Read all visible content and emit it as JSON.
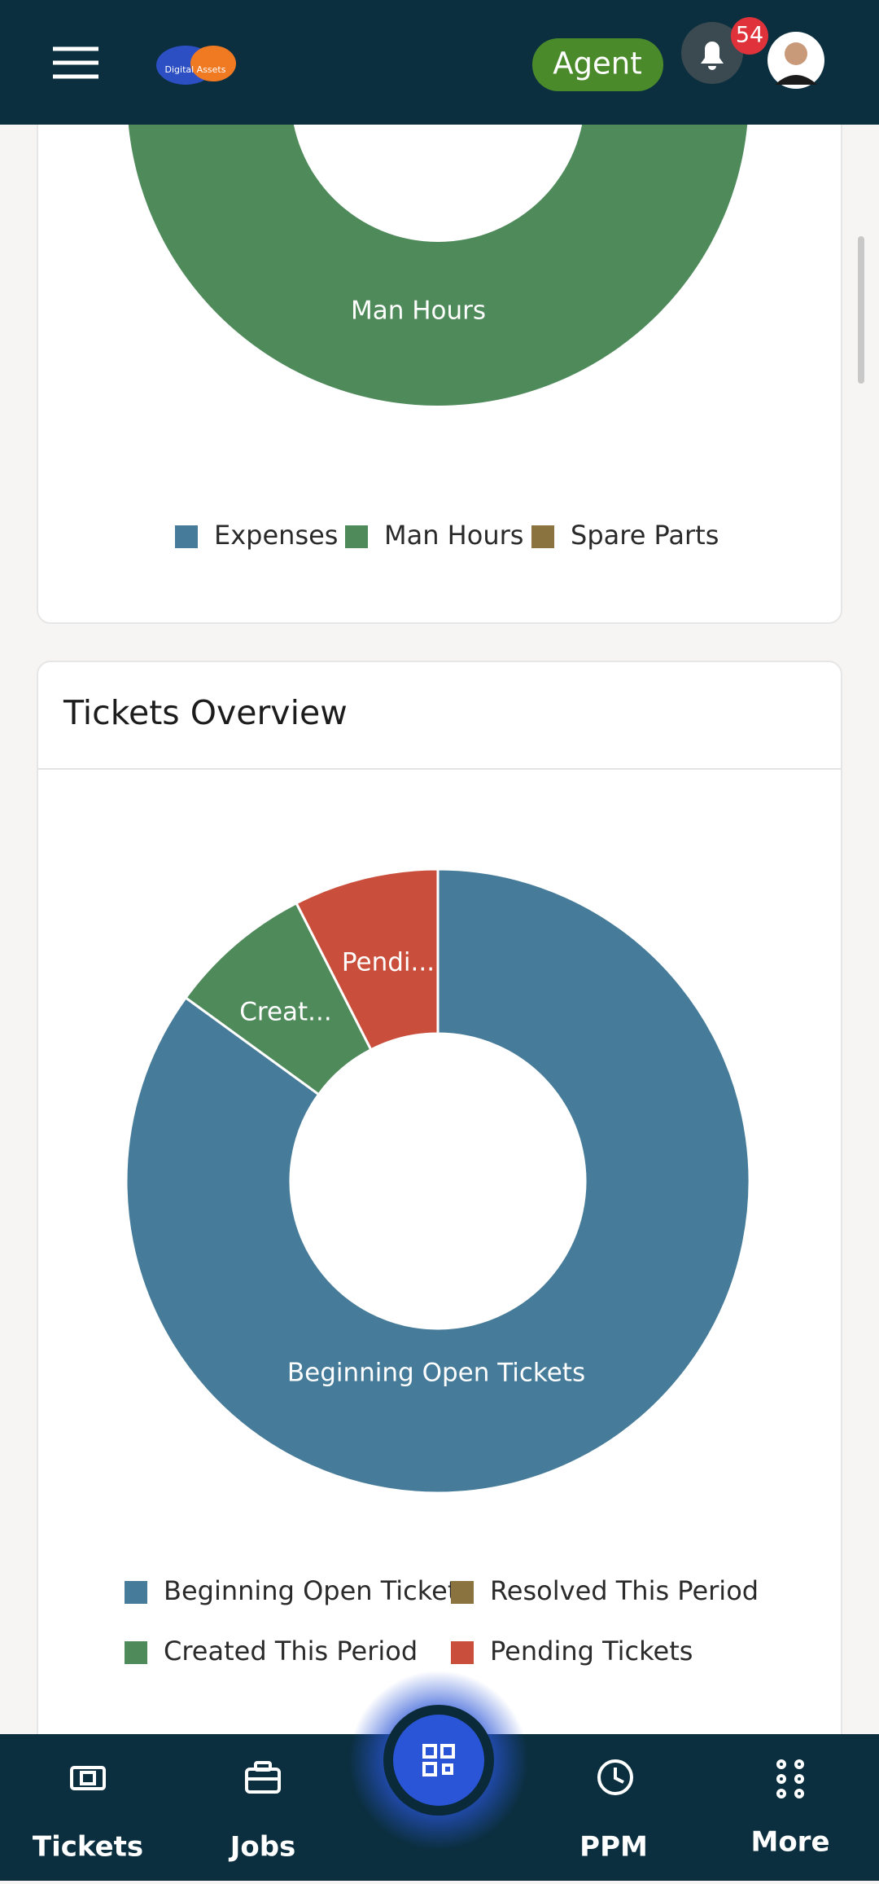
{
  "header": {
    "logo_text": "Digital Assets",
    "role": "Agent",
    "notifications": 54
  },
  "chart_data": [
    {
      "type": "donut",
      "categories": [
        "Expenses",
        "Man Hours",
        "Spare Parts"
      ],
      "values": [
        0,
        100,
        0
      ],
      "colors": [
        "#467c99",
        "#4f8a5b",
        "#8b7340"
      ],
      "data_labels": [
        null,
        "Man Hours",
        null
      ]
    },
    {
      "type": "donut",
      "title": "Tickets Overview",
      "categories": [
        "Beginning Open Tickets",
        "Created This Period",
        "Resolved This Period",
        "Pending Tickets"
      ],
      "values": [
        85,
        7.5,
        0,
        7.5
      ],
      "colors": [
        "#467c99",
        "#4f8a5b",
        "#8b7340",
        "#c94f3c"
      ],
      "data_labels": [
        "Beginning Open Tickets",
        "Creat...",
        null,
        "Pendi..."
      ]
    }
  ],
  "nav": [
    "Tickets",
    "Jobs",
    "PPM",
    "More"
  ]
}
